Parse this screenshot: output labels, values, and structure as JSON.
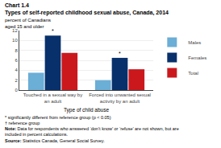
{
  "chart_data": {
    "type": "bar",
    "chart_label": "Chart 1.4",
    "title": "Types of self-reported childhood sexual abuse, Canada, 2014",
    "ylabel": [
      "percent of Canadians",
      "aged 15 and older"
    ],
    "xlabel": "Type of child abuse",
    "categories": [
      "Touched in a sexual way by an adult",
      "Forced into unwanted sexual activity by an adult"
    ],
    "series": [
      {
        "name": "Males",
        "color": "#6baed6",
        "values": [
          3.5,
          2.0
        ]
      },
      {
        "name": "Females",
        "color": "#08306b",
        "values": [
          11.0,
          6.5
        ]
      },
      {
        "name": "Total",
        "color": "#cb181d",
        "values": [
          7.5,
          4.2
        ]
      }
    ],
    "ylim": [
      0,
      12
    ],
    "yticks": [
      0,
      2,
      4,
      6,
      8,
      10,
      12
    ],
    "grid": true,
    "legend": "upper right",
    "annotations": [
      {
        "text": "*",
        "category": "Touched in a sexual way by an adult",
        "series": "Females"
      },
      {
        "text": "*",
        "category": "Forced into unwanted sexual activity by an adult",
        "series": "Females"
      }
    ],
    "footnotes": [
      {
        "text": "* significantly different from reference group (p < 0.05)"
      },
      {
        "text": "† reference group"
      },
      {
        "bold": "Note:",
        "text": "Data for respondents who answered ‘don’t know’ or ‘refuse’ are not shown, but are included in percent calculations."
      },
      {
        "bold": "Source:",
        "text": "Statistics Canada, General Social Survey."
      }
    ]
  }
}
